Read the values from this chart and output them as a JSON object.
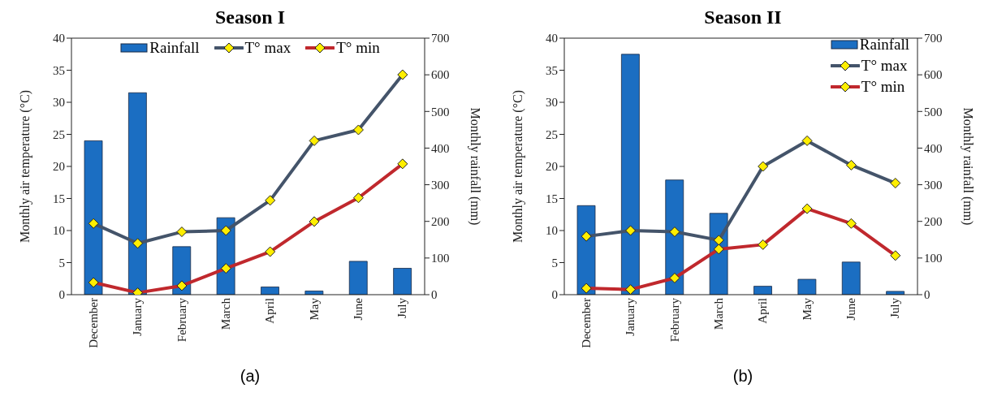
{
  "chart_data": [
    {
      "type": "bar",
      "title": "Season I",
      "categories": [
        "December",
        "January",
        "February",
        "March",
        "April",
        "May",
        "June",
        "July"
      ],
      "ylabel": "Monthly air temperature (°C)",
      "y2label": "Monthly rainfall (mm)",
      "ylim": [
        0,
        40
      ],
      "yticks": [
        0,
        5,
        10,
        15,
        20,
        25,
        30,
        35,
        40
      ],
      "y2lim": [
        0,
        700
      ],
      "y2ticks": [
        0,
        100,
        200,
        300,
        400,
        500,
        600,
        700
      ],
      "grid": false,
      "legend": "top",
      "marker": "diamond",
      "annotations": [
        "(a)"
      ],
      "series": [
        {
          "name": "Rainfall",
          "axis": "y2",
          "color": "#1b6ec2",
          "values": [
            420,
            551,
            131,
            210,
            21,
            10,
            91,
            72
          ]
        },
        {
          "name": "T° max",
          "type": "line",
          "color": "#44546a",
          "values": [
            11.1,
            8.0,
            9.8,
            10.0,
            14.7,
            24.0,
            25.7,
            34.3
          ]
        },
        {
          "name": "T° min",
          "type": "line",
          "color": "#c0282d",
          "values": [
            1.9,
            0.3,
            1.4,
            4.1,
            6.7,
            11.4,
            15.1,
            20.4
          ]
        }
      ]
    },
    {
      "type": "bar",
      "title": "Season II",
      "categories": [
        "December",
        "January",
        "February",
        "March",
        "April",
        "May",
        "June",
        "July"
      ],
      "ylabel": "Monthly air temperature (°C)",
      "y2label": "Monthly rainfall (mm)",
      "ylim": [
        0,
        40
      ],
      "yticks": [
        0,
        5,
        10,
        15,
        20,
        25,
        30,
        35,
        40
      ],
      "y2lim": [
        0,
        700
      ],
      "y2ticks": [
        0,
        100,
        200,
        300,
        400,
        500,
        600,
        700
      ],
      "grid": false,
      "legend": "top right",
      "marker": "diamond",
      "annotations": [
        "(b)"
      ],
      "series": [
        {
          "name": "Rainfall",
          "axis": "y2",
          "color": "#1b6ec2",
          "values": [
            243,
            656,
            313,
            222,
            23,
            42,
            89,
            9
          ]
        },
        {
          "name": "T° max",
          "type": "line",
          "color": "#44546a",
          "values": [
            9.1,
            10.0,
            9.8,
            8.5,
            20.0,
            24.0,
            20.2,
            17.4
          ]
        },
        {
          "name": "T° min",
          "type": "line",
          "color": "#c0282d",
          "values": [
            1.0,
            0.8,
            2.6,
            7.1,
            7.8,
            13.4,
            11.1,
            6.1
          ]
        }
      ]
    }
  ]
}
